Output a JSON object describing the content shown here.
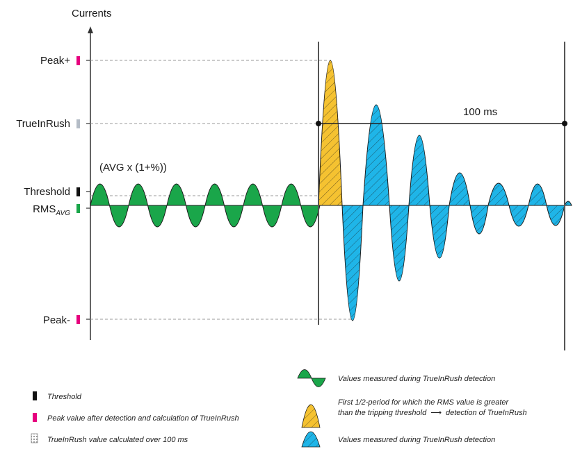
{
  "axis": {
    "y_title": "Currents"
  },
  "levels": {
    "peak_plus": {
      "label": "Peak+",
      "color": "#e6007e"
    },
    "trueinrush": {
      "label": "TrueInRush",
      "color": "#b4bcc6"
    },
    "threshold": {
      "label": "Threshold",
      "color": "#111111"
    },
    "rms_avg": {
      "label": "RMS",
      "sub": "AVG",
      "color": "#1aa64a"
    },
    "peak_minus": {
      "label": "Peak-",
      "color": "#e6007e"
    }
  },
  "annotations": {
    "avg_formula": "(AVG x (1+%))",
    "duration": "100 ms"
  },
  "colors": {
    "green_wave": "#1aa64a",
    "yellow_wave": "#f5c231",
    "blue_wave": "#1fb5e8"
  },
  "legend_left": [
    {
      "icon": "black-bar",
      "text": "Threshold"
    },
    {
      "icon": "pink-bar",
      "text": "Peak value after detection and calculation of TrueInRush"
    },
    {
      "icon": "hatched-box",
      "text": "TrueInRush value calculated over 100 ms"
    }
  ],
  "legend_right": [
    {
      "icon": "green-wave",
      "text": "Values measured during TrueInRush detection"
    },
    {
      "icon": "yellow-wave",
      "text_line1": "First 1/2-period for which the RMS value is greater",
      "text_line2": "than the tripping threshold",
      "text_line2b": "detection of TrueInRush"
    },
    {
      "icon": "blue-wave",
      "text": "Values measured during TrueInRush detection"
    }
  ]
}
